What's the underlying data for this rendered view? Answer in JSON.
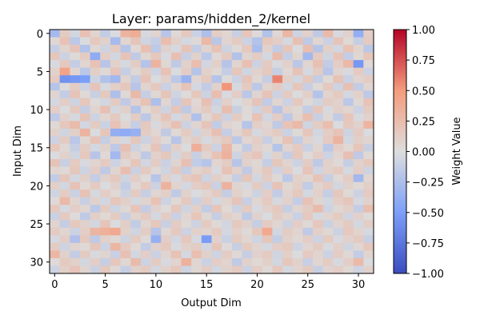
{
  "chart_data": {
    "type": "heatmap",
    "title": "Layer: params/hidden_2/kernel",
    "xlabel": "Output Dim",
    "ylabel": "Input Dim",
    "colorbar_label": "Weight Value",
    "colormap": "coolwarm",
    "rows": 32,
    "cols": 32,
    "vmin": -1.0,
    "vmax": 1.0,
    "x_ticks": [
      0,
      5,
      10,
      15,
      20,
      25,
      30
    ],
    "y_ticks": [
      0,
      5,
      10,
      15,
      20,
      25,
      30
    ],
    "colorbar_ticks": [
      "−1.00",
      "−0.75",
      "−0.50",
      "−0.25",
      "0.00",
      "0.25",
      "0.50",
      "0.75",
      "1.00"
    ],
    "colorbar_tick_values": [
      -1.0,
      -0.75,
      -0.5,
      -0.25,
      0.0,
      0.25,
      0.5,
      0.75,
      1.0
    ],
    "values": [
      [
        -0.29,
        0.14,
        -0.06,
        0.22,
        0.08,
        -0.14,
        -0.02,
        0.32,
        0.37,
        -0.04,
        0.08,
        -0.19,
        0.03,
        0.16,
        -0.1,
        -0.24,
        0.12,
        0.06,
        -0.11,
        0.18,
        0.02,
        -0.22,
        0.05,
        0.3,
        -0.08,
        0.1,
        -0.16,
        0.27,
        -0.03,
        0.09,
        -0.38,
        0.12
      ],
      [
        0.05,
        0.21,
        -0.17,
        -0.02,
        0.16,
        0.09,
        -0.28,
        0.06,
        0.19,
        -0.07,
        -0.12,
        0.24,
        0.11,
        -0.05,
        0.03,
        0.28,
        -0.18,
        0.07,
        0.14,
        -0.09,
        -0.21,
        0.17,
        0.12,
        -0.04,
        0.22,
        -0.15,
        0.06,
        -0.1,
        0.19,
        0.04,
        -0.12,
        0.15
      ],
      [
        -0.12,
        0.08,
        0.19,
        -0.22,
        0.05,
        -0.08,
        0.15,
        -0.2,
        0.04,
        0.23,
        -0.16,
        0.09,
        -0.04,
        0.2,
        -0.13,
        0.07,
        0.21,
        -0.08,
        0.03,
        0.16,
        -0.26,
        0.09,
        -0.14,
        0.18,
        -0.02,
        0.24,
        -0.2,
        0.11,
        -0.06,
        0.21,
        0.08,
        -0.17
      ],
      [
        0.18,
        -0.09,
        0.03,
        0.14,
        -0.4,
        0.12,
        -0.06,
        0.2,
        -0.15,
        0.06,
        0.17,
        -0.03,
        0.22,
        -0.11,
        0.09,
        -0.17,
        0.04,
        0.15,
        -0.22,
        0.07,
        0.13,
        -0.05,
        0.26,
        -0.12,
        0.08,
        -0.3,
        0.15,
        -0.07,
        0.2,
        -0.13,
        0.05,
        0.18
      ],
      [
        -0.03,
        0.16,
        -0.13,
        0.06,
        0.21,
        -0.19,
        0.1,
        -0.04,
        0.13,
        -0.21,
        0.32,
        0.05,
        -0.15,
        0.09,
        0.24,
        -0.06,
        0.11,
        -0.2,
        0.07,
        0.23,
        -0.09,
        0.14,
        -0.03,
        0.1,
        -0.18,
        0.06,
        0.22,
        -0.14,
        0.12,
        0.28,
        -0.55,
        0.04
      ],
      [
        0.09,
        0.45,
        0.06,
        -0.18,
        0.11,
        0.03,
        0.19,
        -0.12,
        0.05,
        0.14,
        -0.08,
        0.21,
        -0.02,
        0.13,
        -0.2,
        0.1,
        0.04,
        -0.13,
        0.18,
        -0.07,
        0.09,
        0.16,
        -0.11,
        0.05,
        0.2,
        -0.04,
        0.13,
        -0.19,
        0.07,
        -0.03,
        0.15,
        -0.09
      ],
      [
        0.15,
        -0.58,
        -0.55,
        -0.5,
        -0.08,
        -0.22,
        -0.3,
        0.08,
        -0.14,
        0.2,
        -0.02,
        0.1,
        -0.17,
        -0.35,
        0.06,
        0.15,
        -0.21,
        0.02,
        -0.09,
        0.19,
        0.05,
        -0.12,
        0.58,
        0.11,
        -0.06,
        0.17,
        -0.13,
        0.04,
        0.21,
        -0.1,
        0.08,
        0.13
      ],
      [
        -0.2,
        0.02,
        0.13,
        -0.09,
        0.19,
        -0.03,
        0.11,
        0.17,
        -0.19,
        0.07,
        0.16,
        -0.1,
        0.06,
        0.2,
        -0.05,
        -0.14,
        0.09,
        0.52,
        -0.04,
        0.14,
        -0.17,
        0.08,
        0.13,
        -0.06,
        0.18,
        -0.11,
        0.03,
        0.16,
        -0.08,
        0.22,
        -0.14,
        0.06
      ],
      [
        0.07,
        -0.14,
        0.2,
        0.04,
        -0.11,
        0.16,
        -0.24,
        0.03,
        0.28,
        -0.12,
        0.05,
        0.19,
        -0.07,
        0.02,
        0.17,
        -0.09,
        0.24,
        -0.03,
        0.12,
        -0.18,
        0.07,
        0.2,
        -0.09,
        0.14,
        -0.02,
        0.11,
        -0.21,
        0.08,
        0.15,
        -0.05,
        0.1,
        -0.16
      ],
      [
        -0.05,
        0.12,
        -0.08,
        0.17,
        0.02,
        -0.06,
        0.14,
        -0.15,
        0.09,
        0.21,
        -0.24,
        0.06,
        -0.13,
        0.18,
        0.04,
        0.23,
        -0.1,
        0.11,
        -0.02,
        0.08,
        0.19,
        -0.14,
        0.06,
        -0.09,
        0.16,
        0.03,
        -0.07,
        0.13,
        0.09,
        -0.17,
        0.05,
        0.2
      ],
      [
        0.12,
        -0.02,
        0.16,
        -0.13,
        0.08,
        0.22,
        -0.05,
        0.11,
        -0.21,
        0.04,
        0.13,
        -0.08,
        0.19,
        -0.15,
        0.07,
        0.14,
        -0.06,
        0.25,
        -0.11,
        0.04,
        -0.08,
        0.15,
        -0.19,
        0.1,
        0.05,
        -0.13,
        0.18,
        -0.03,
        0.11,
        0.06,
        -0.09,
        0.14
      ],
      [
        -0.16,
        0.09,
        -0.04,
        0.2,
        -0.08,
        0.06,
        0.15,
        -0.02,
        0.13,
        -0.17,
        0.08,
        0.19,
        -0.05,
        0.1,
        -0.23,
        0.05,
        0.17,
        -0.09,
        0.14,
        0.02,
        0.21,
        -0.06,
        0.12,
        -0.16,
        0.08,
        0.23,
        -0.11,
        0.05,
        -0.14,
        0.18,
        -0.03,
        0.09
      ],
      [
        0.04,
        0.17,
        0.26,
        -0.06,
        0.14,
        -0.1,
        0.21,
        0.07,
        -0.12,
        0.16,
        -0.03,
        0.1,
        0.22,
        -0.09,
        0.06,
        0.19,
        -0.14,
        0.08,
        0.03,
        -0.2,
        0.11,
        0.06,
        -0.15,
        0.2,
        0.28,
        -0.07,
        0.13,
        0.24,
        -0.02,
        0.16,
        0.09,
        0.31
      ],
      [
        0.1,
        -0.07,
        0.11,
        0.32,
        -0.02,
        0.18,
        -0.38,
        -0.4,
        -0.36,
        0.13,
        0.06,
        -0.15,
        0.04,
        0.15,
        -0.07,
        0.1,
        0.22,
        -0.12,
        0.06,
        0.17,
        -0.04,
        0.09,
        0.14,
        -0.1,
        0.03,
        0.18,
        -0.06,
        0.12,
        0.2,
        -0.08,
        0.14,
        -0.02
      ],
      [
        -0.09,
        0.14,
        -0.18,
        0.05,
        0.2,
        -0.12,
        0.08,
        -0.04,
        0.17,
        -0.09,
        0.12,
        0.03,
        -0.19,
        0.07,
        0.13,
        -0.04,
        0.09,
        0.16,
        -0.17,
        0.06,
        0.12,
        -0.11,
        0.05,
        0.21,
        -0.13,
        0.08,
        -0.03,
        0.15,
        0.32,
        -0.06,
        0.11,
        0.07
      ],
      [
        0.17,
        0.05,
        -0.12,
        0.13,
        -0.05,
        0.09,
        -0.16,
        0.22,
        -0.08,
        0.04,
        0.19,
        -0.13,
        0.11,
        -0.02,
        0.36,
        0.14,
        -0.09,
        0.3,
        0.03,
        -0.14,
        0.1,
        0.05,
        -0.2,
        0.08,
        0.15,
        -0.1,
        0.06,
        -0.17,
        0.12,
        0.04,
        0.18,
        -0.11
      ],
      [
        -0.02,
        0.1,
        -0.07,
        0.16,
        -0.19,
        0.04,
        -0.3,
        0.14,
        0.06,
        -0.16,
        0.1,
        0.17,
        -0.06,
        0.13,
        -0.11,
        0.07,
        0.2,
        0.34,
        -0.08,
        0.12,
        0.19,
        -0.05,
        0.09,
        -0.13,
        0.17,
        0.02,
        0.12,
        -0.08,
        0.06,
        0.22,
        -0.15,
        0.04
      ],
      [
        0.2,
        -0.11,
        0.15,
        -0.03,
        0.08,
        0.14,
        -0.09,
        0.05,
        0.18,
        -0.06,
        0.13,
        -0.1,
        0.07,
        0.22,
        -0.14,
        -0.2,
        0.06,
        0.13,
        -0.19,
        0.09,
        0.05,
        -0.12,
        0.17,
        0.07,
        -0.09,
        0.13,
        -0.16,
        0.1,
        0.03,
        -0.12,
        0.09,
        0.16
      ],
      [
        0.06,
        0.03,
        0.17,
        -0.08,
        0.12,
        -0.15,
        0.07,
        0.24,
        -0.1,
        0.15,
        0.03,
        -0.07,
        0.16,
        -0.12,
        0.08,
        0.13,
        -0.03,
        0.21,
        0.1,
        -0.15,
        0.07,
        0.16,
        -0.08,
        0.12,
        -0.02,
        0.19,
        -0.07,
        0.09,
        0.15,
        -0.04,
        0.12,
        -0.08
      ],
      [
        -0.14,
        0.18,
        -0.05,
        0.11,
        -0.13,
        0.09,
        0.16,
        -0.07,
        0.12,
        0.02,
        -0.19,
        0.1,
        -0.04,
        0.14,
        0.19,
        -0.08,
        0.11,
        0.05,
        -0.12,
        0.18,
        -0.06,
        0.13,
        0.03,
        -0.17,
        0.1,
        0.06,
        0.2,
        -0.11,
        0.04,
        0.13,
        -0.3,
        0.06
      ],
      [
        0.11,
        -0.06,
        0.2,
        0.04,
        0.15,
        -0.02,
        0.09,
        -0.14,
        0.05,
        0.16,
        -0.09,
        0.33,
        0.08,
        -0.05,
        0.12,
        0.17,
        -0.1,
        0.33,
        0.07,
        -0.03,
        0.14,
        -0.09,
        0.2,
        0.05,
        0.11,
        -0.14,
        0.08,
        0.15,
        -0.06,
        0.09,
        0.04,
        0.11
      ],
      [
        -0.07,
        0.13,
        -0.1,
        0.21,
        -0.04,
        0.12,
        0.04,
        -0.09,
        0.14,
        -0.12,
        0.06,
        0.11,
        -0.15,
        0.09,
        -0.02,
        0.06,
        0.15,
        -0.13,
        0.1,
        0.04,
        -0.08,
        0.12,
        -0.14,
        0.07,
        0.16,
        -0.05,
        0.1,
        -0.12,
        0.17,
        0.03,
        -0.09,
        0.15
      ],
      [
        0.03,
        0.28,
        0.07,
        -0.11,
        0.09,
        -0.06,
        0.18,
        0.11,
        -0.05,
        0.08,
        0.21,
        -0.08,
        0.04,
        0.16,
        -0.1,
        0.12,
        -0.05,
        0.08,
        0.19,
        -0.11,
        0.06,
        0.15,
        -0.04,
        0.1,
        -0.13,
        0.21,
        0.07,
        -0.06,
        0.12,
        0.18,
        -0.04,
        0.09
      ],
      [
        0.16,
        -0.04,
        0.12,
        0.06,
        -0.17,
        0.14,
        -0.08,
        0.05,
        0.19,
        -0.13,
        0.09,
        0.02,
        0.17,
        -0.07,
        0.11,
        -0.14,
        0.18,
        0.04,
        -0.09,
        0.14,
        -0.03,
        0.1,
        0.16,
        -0.12,
        0.07,
        0.13,
        0.26,
        -0.08,
        0.05,
        0.11,
        -0.13,
        0.24
      ],
      [
        -0.1,
        0.15,
        0.02,
        -0.15,
        0.11,
        0.04,
        0.14,
        -0.11,
        0.08,
        0.15,
        -0.05,
        0.13,
        -0.1,
        0.06,
        0.18,
        0.05,
        -0.12,
        0.11,
        0.06,
        -0.16,
        0.09,
        -0.02,
        0.13,
        0.07,
        -0.1,
        0.16,
        -0.04,
        0.08,
        0.14,
        -0.07,
        0.1,
        0.02
      ],
      [
        0.08,
        -0.13,
        0.16,
        0.09,
        -0.06,
        0.19,
        -0.02,
        0.12,
        -0.14,
        0.06,
        0.17,
        -0.11,
        0.13,
        0.04,
        -0.08,
        0.15,
        0.03,
        -0.06,
        0.16,
        0.09,
        -0.12,
        0.14,
        0.06,
        -0.09,
        0.12,
        0.03,
        0.17,
        -0.1,
        0.08,
        0.14,
        -0.05,
        0.12
      ],
      [
        0.14,
        0.06,
        -0.09,
        0.12,
        0.31,
        0.35,
        0.4,
        0.1,
        -0.07,
        0.13,
        -0.2,
        0.05,
        0.16,
        -0.09,
        0.1,
        0.07,
        0.15,
        -0.05,
        0.11,
        0.03,
        0.17,
        0.4,
        -0.06,
        0.13,
        0.08,
        -0.15,
        0.11,
        0.05,
        -0.09,
        0.16,
        0.08,
        -0.04
      ],
      [
        -0.04,
        0.12,
        -0.23,
        0.16,
        -0.15,
        0.1,
        0.05,
        -0.08,
        0.15,
        0.03,
        -0.36,
        0.12,
        -0.06,
        0.17,
        -0.04,
        -0.52,
        0.09,
        -0.1,
        0.14,
        0.06,
        -0.07,
        0.18,
        -0.13,
        0.1,
        0.05,
        0.12,
        -0.08,
        0.15,
        -0.03,
        0.09,
        0.14,
        -0.11
      ],
      [
        0.13,
        -0.08,
        0.07,
        0.03,
        0.18,
        -0.09,
        0.3,
        0.15,
        0.04,
        -0.14,
        0.09,
        0.16,
        -0.03,
        0.1,
        0.13,
        -0.06,
        0.18,
        0.02,
        -0.11,
        0.15,
        0.07,
        -0.04,
        0.12,
        0.16,
        -0.08,
        0.06,
        0.14,
        -0.03,
        0.11,
        -0.07,
        0.05,
        0.17
      ],
      [
        0.3,
        0.09,
        -0.13,
        0.14,
        -0.03,
        0.08,
        -0.11,
        0.22,
        -0.06,
        0.12,
        -0.1,
        0.07,
        0.21,
        -0.05,
        0.23,
        0.1,
        -0.08,
        0.13,
        0.04,
        -0.12,
        0.09,
        0.14,
        -0.07,
        0.11,
        -0.02,
        0.15,
        0.08,
        -0.09,
        0.13,
        0.05,
        -0.14,
        0.08
      ],
      [
        0.02,
        0.15,
        0.1,
        -0.06,
        0.12,
        -0.12,
        0.17,
        0.05,
        0.26,
        -0.09,
        0.14,
        -0.03,
        0.08,
        0.34,
        0.06,
        -0.1,
        0.12,
        0.08,
        -0.15,
        0.09,
        0.04,
        0.11,
        -0.06,
        0.17,
        0.09,
        -0.11,
        0.06,
        0.13,
        -0.04,
        0.12,
        0.27,
        -0.02
      ],
      [
        -0.08,
        0.11,
        0.19,
        0.07,
        -0.1,
        0.16,
        0.03,
        -0.12,
        0.09,
        0.14,
        -0.05,
        0.1,
        0.17,
        -0.08,
        0.05,
        0.13,
        -0.06,
        0.09,
        0.15,
        -0.09,
        0.12,
        0.03,
        0.16,
        -0.05,
        0.08,
        0.14,
        -0.11,
        0.07,
        0.12,
        0.04,
        -0.07,
        0.1
      ]
    ]
  }
}
